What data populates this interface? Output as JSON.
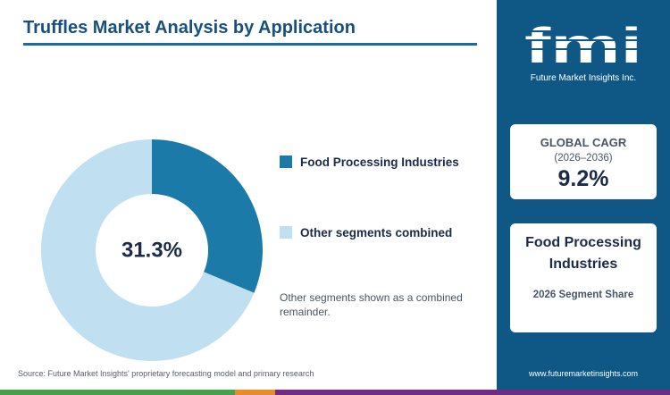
{
  "title": "Truffles Market Analysis by Application",
  "chart_data": {
    "type": "pie",
    "title": "Truffles Market Analysis by Application",
    "center_label": "31.3%",
    "slices": [
      {
        "name": "Food Processing Industries",
        "value": 31.3,
        "color": "#1b7aa8"
      },
      {
        "name": "Other segments combined",
        "value": 68.7,
        "color": "#c0dff0"
      }
    ],
    "legend_position": "right"
  },
  "note": "Other segments shown as a combined remainder.",
  "source": "Source: Future Market Insights' proprietary forecasting model and primary research",
  "sidebar": {
    "logo": {
      "letters": "fmi",
      "tagline": "Future Market Insights Inc."
    },
    "cagr": {
      "label": "GLOBAL CAGR",
      "period": "(2026–2036)",
      "value": "9.2%"
    },
    "segment": {
      "name": "Food Processing Industries",
      "subtitle": "2026 Segment Share"
    },
    "website": "www.futuremarketinsights.com"
  },
  "colors": {
    "title": "#17507f",
    "sidebar": "#0f5886",
    "footer": [
      "#47a04a",
      "#e98a2b",
      "#6f2b86"
    ]
  }
}
